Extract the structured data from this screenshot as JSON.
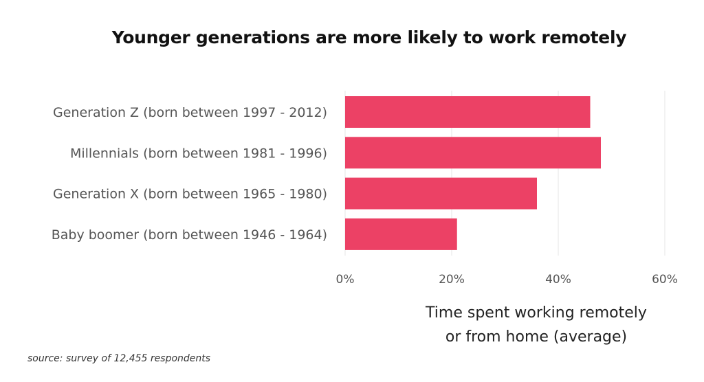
{
  "chart_data": {
    "type": "bar",
    "orientation": "horizontal",
    "title": "Younger generations are more likely to work remotely",
    "categories": [
      "Generation Z (born between 1997 - 2012)",
      "Millennials (born between 1981 - 1996)",
      "Generation X (born between 1965 - 1980)",
      "Baby boomer (born between 1946 - 1964)"
    ],
    "values": [
      46,
      48,
      36,
      21
    ],
    "xlim": [
      0,
      60
    ],
    "xticks": [
      "0%",
      "20%",
      "40%",
      "60%"
    ],
    "xtick_values": [
      0,
      20,
      40,
      60
    ],
    "xlabel_lines": [
      "Time spent working remotely",
      "or from home (average)"
    ],
    "ylabel": "",
    "grid": "vertical",
    "bar_color": "#ec4165",
    "source": "source: survey of 12,455 respondents"
  }
}
